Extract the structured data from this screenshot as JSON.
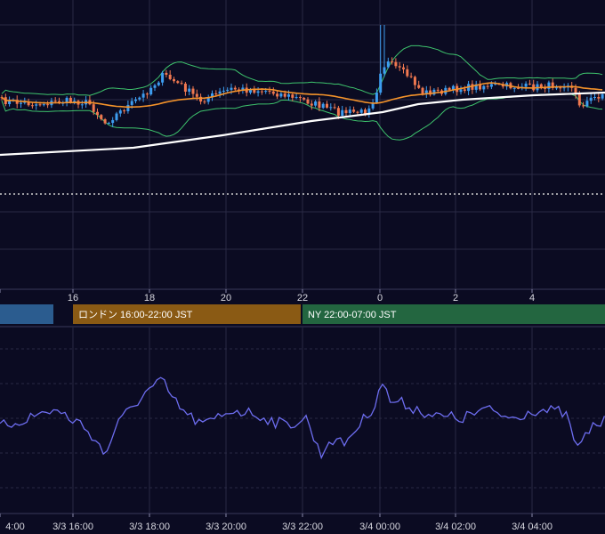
{
  "colors": {
    "background": "#0b0b22",
    "grid": "#2a2a44",
    "candle_up": "#3d9df0",
    "candle_down": "#f07850",
    "ma_short": "#f5932a",
    "ma_long": "#ffffff",
    "bollinger": "#3ec46d",
    "oscillator": "#6d6df0",
    "session_asia": "#2b5c8f",
    "session_london": "#8a5a14",
    "session_ny": "#236640"
  },
  "sessions": [
    {
      "name": "",
      "color": "#2b5c8f"
    },
    {
      "name": "ロンドン 16:00-22:00 JST",
      "color": "#8a5a14"
    },
    {
      "name": "NY 22:00-07:00 JST",
      "color": "#236640"
    }
  ],
  "chart_data": [
    {
      "type": "candlestick",
      "title": "",
      "x_ticks": [
        "4",
        "16",
        "18",
        "20",
        "22",
        "0",
        "2",
        "4"
      ],
      "overlays": [
        "moving-average-short",
        "moving-average-long",
        "bollinger-bands"
      ],
      "grid": true,
      "reference_line": "dotted"
    },
    {
      "type": "line",
      "title": "",
      "x_ticks": [
        "4:00",
        "3/3 16:00",
        "3/3 18:00",
        "3/3 20:00",
        "3/3 22:00",
        "3/4 00:00",
        "3/4 02:00",
        "3/4 04:00"
      ],
      "grid": true
    }
  ]
}
